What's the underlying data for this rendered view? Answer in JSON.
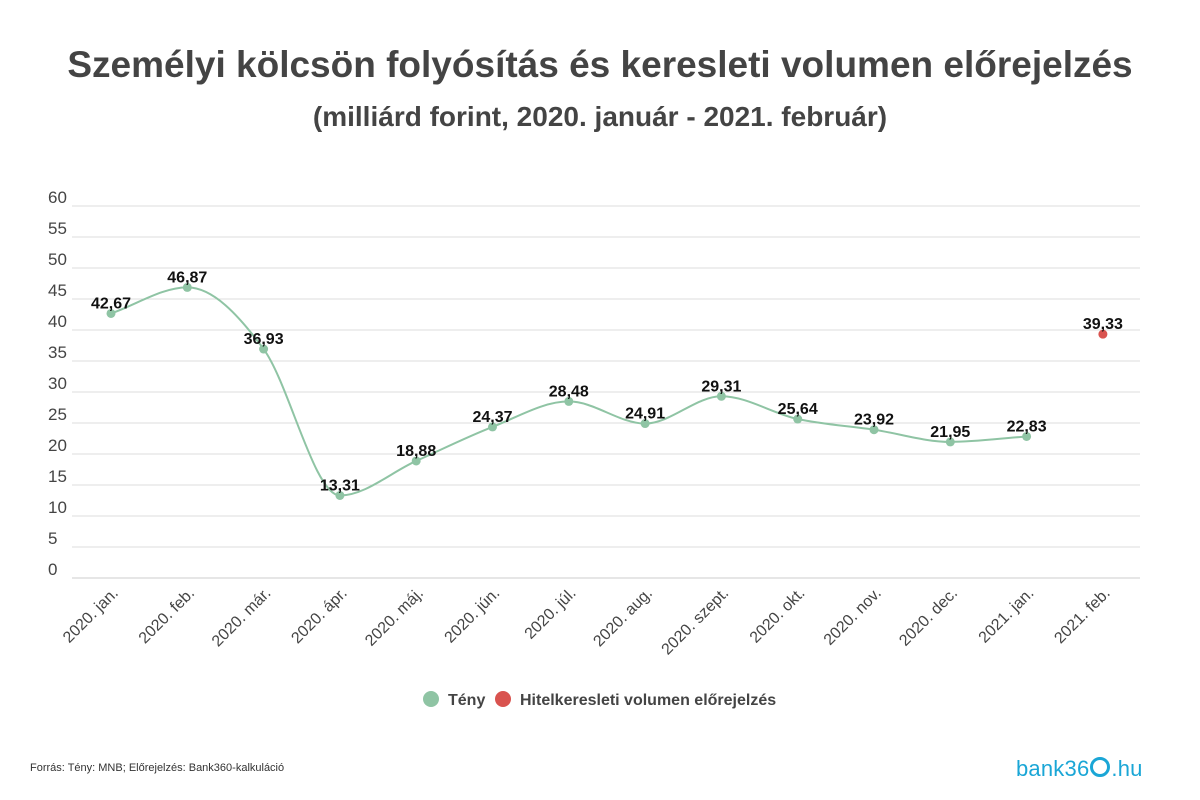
{
  "chart_data": {
    "type": "line",
    "title": "Személyi kölcsön folyósítás és keresleti volumen előrejelzés",
    "subtitle": "(milliárd forint, 2020. január - 2021. február)",
    "categories": [
      "2020. jan.",
      "2020. feb.",
      "2020. már.",
      "2020. ápr.",
      "2020. máj.",
      "2020. jún.",
      "2020. júl.",
      "2020. aug.",
      "2020. szept.",
      "2020. okt.",
      "2020. nov.",
      "2020. dec.",
      "2021. jan.",
      "2021. feb."
    ],
    "series": [
      {
        "name": "Tény",
        "color": "#8fc4a4",
        "values": [
          42.67,
          46.87,
          36.93,
          13.31,
          18.88,
          24.37,
          28.48,
          24.91,
          29.31,
          25.64,
          23.92,
          21.95,
          22.83,
          null
        ],
        "labels": [
          "42,67",
          "46,87",
          "36,93",
          "13,31",
          "18,88",
          "24,37",
          "28,48",
          "24,91",
          "29,31",
          "25,64",
          "23,92",
          "21,95",
          "22,83",
          null
        ]
      },
      {
        "name": "Hitelkeresleti volumen előrejelzés",
        "color": "#d9534f",
        "values": [
          null,
          null,
          null,
          null,
          null,
          null,
          null,
          null,
          null,
          null,
          null,
          null,
          null,
          39.33
        ],
        "labels": [
          null,
          null,
          null,
          null,
          null,
          null,
          null,
          null,
          null,
          null,
          null,
          null,
          null,
          "39,33"
        ]
      }
    ],
    "y_ticks": [
      0,
      5,
      10,
      15,
      20,
      25,
      30,
      35,
      40,
      45,
      50,
      55,
      60
    ],
    "ylim": [
      0,
      60
    ],
    "grid": true,
    "legend": "bottom-center"
  },
  "footer": {
    "source": "Forrás: Tény: MNB; Előrejelzés: Bank360-kalkuláció",
    "logo_pre": "bank36",
    "logo_post": ".hu"
  }
}
